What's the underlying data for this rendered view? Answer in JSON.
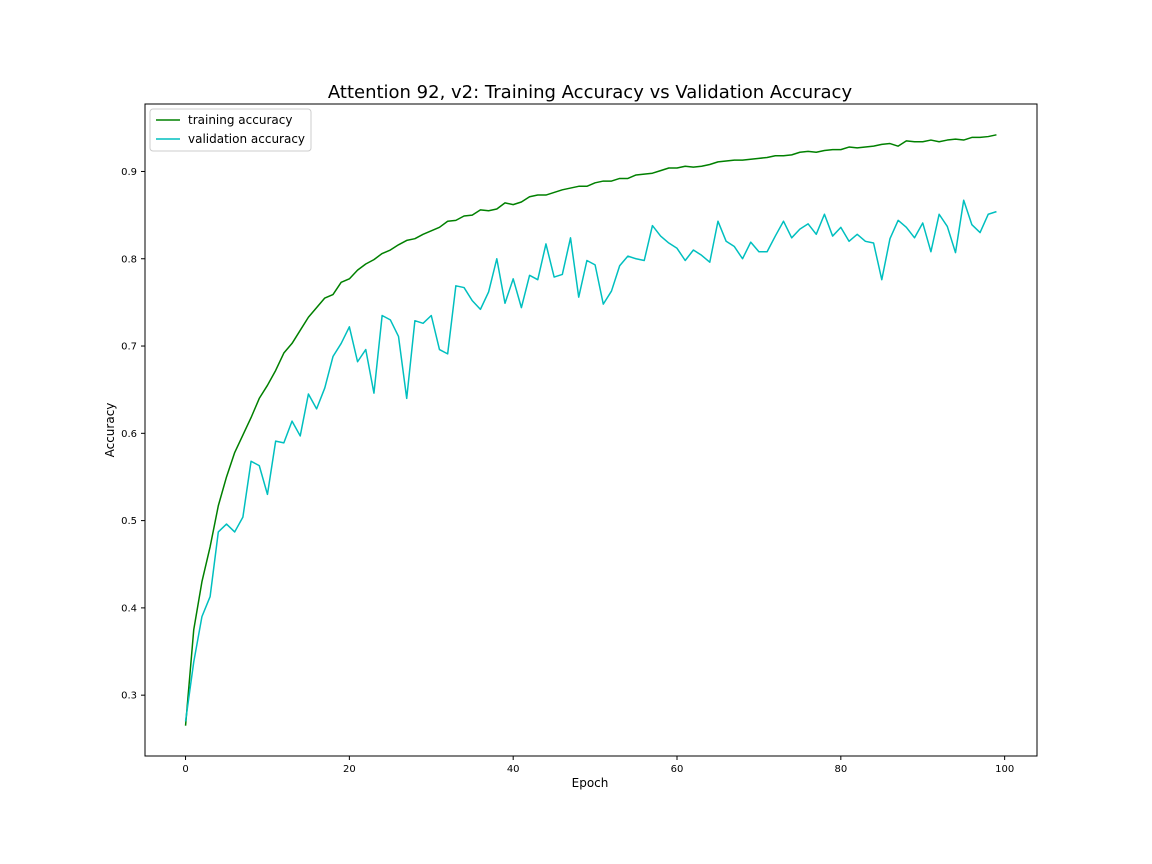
{
  "chart_data": {
    "type": "line",
    "title": "Attention 92, v2: Training Accuracy vs Validation Accuracy",
    "xlabel": "Epoch",
    "ylabel": "Accuracy",
    "xlim": [
      -4.95,
      103.95
    ],
    "ylim": [
      0.2303,
      0.9773
    ],
    "xticks": [
      0,
      20,
      40,
      60,
      80,
      100
    ],
    "yticks": [
      0.3,
      0.4,
      0.5,
      0.6,
      0.7,
      0.8,
      0.9
    ],
    "xtick_labels": [
      "0",
      "20",
      "40",
      "60",
      "80",
      "100"
    ],
    "ytick_labels": [
      "0.3",
      "0.4",
      "0.5",
      "0.6",
      "0.7",
      "0.8",
      "0.9"
    ],
    "grid": false,
    "legend_position": "top-left",
    "series": [
      {
        "name": "training accuracy",
        "color": "#008000",
        "values": [
          0.265,
          0.375,
          0.43,
          0.47,
          0.517,
          0.55,
          0.578,
          0.598,
          0.618,
          0.64,
          0.655,
          0.672,
          0.692,
          0.703,
          0.718,
          0.733,
          0.744,
          0.755,
          0.759,
          0.773,
          0.777,
          0.787,
          0.794,
          0.799,
          0.806,
          0.81,
          0.816,
          0.821,
          0.823,
          0.828,
          0.832,
          0.836,
          0.843,
          0.844,
          0.849,
          0.85,
          0.856,
          0.855,
          0.857,
          0.864,
          0.862,
          0.865,
          0.871,
          0.873,
          0.873,
          0.876,
          0.879,
          0.881,
          0.883,
          0.883,
          0.887,
          0.889,
          0.889,
          0.892,
          0.892,
          0.896,
          0.897,
          0.898,
          0.901,
          0.904,
          0.904,
          0.906,
          0.905,
          0.906,
          0.908,
          0.911,
          0.912,
          0.913,
          0.913,
          0.914,
          0.915,
          0.916,
          0.918,
          0.918,
          0.919,
          0.922,
          0.923,
          0.922,
          0.924,
          0.925,
          0.925,
          0.928,
          0.927,
          0.928,
          0.929,
          0.931,
          0.932,
          0.929,
          0.935,
          0.934,
          0.934,
          0.936,
          0.934,
          0.936,
          0.937,
          0.936,
          0.939,
          0.939,
          0.94,
          0.942
        ]
      },
      {
        "name": "validation accuracy",
        "color": "#00bfbf",
        "values": [
          0.27,
          0.338,
          0.39,
          0.413,
          0.487,
          0.496,
          0.487,
          0.504,
          0.568,
          0.563,
          0.53,
          0.591,
          0.589,
          0.614,
          0.597,
          0.645,
          0.628,
          0.652,
          0.688,
          0.703,
          0.722,
          0.682,
          0.696,
          0.646,
          0.735,
          0.73,
          0.711,
          0.64,
          0.729,
          0.726,
          0.735,
          0.696,
          0.691,
          0.769,
          0.767,
          0.752,
          0.742,
          0.762,
          0.8,
          0.749,
          0.777,
          0.744,
          0.781,
          0.776,
          0.817,
          0.779,
          0.782,
          0.824,
          0.756,
          0.798,
          0.793,
          0.748,
          0.763,
          0.792,
          0.803,
          0.8,
          0.798,
          0.838,
          0.826,
          0.818,
          0.812,
          0.798,
          0.81,
          0.804,
          0.796,
          0.843,
          0.82,
          0.814,
          0.8,
          0.819,
          0.808,
          0.808,
          0.826,
          0.843,
          0.824,
          0.834,
          0.84,
          0.828,
          0.851,
          0.826,
          0.836,
          0.82,
          0.828,
          0.82,
          0.818,
          0.776,
          0.823,
          0.844,
          0.836,
          0.824,
          0.841,
          0.808,
          0.851,
          0.837,
          0.807,
          0.867,
          0.839,
          0.83,
          0.851,
          0.854
        ]
      }
    ]
  }
}
